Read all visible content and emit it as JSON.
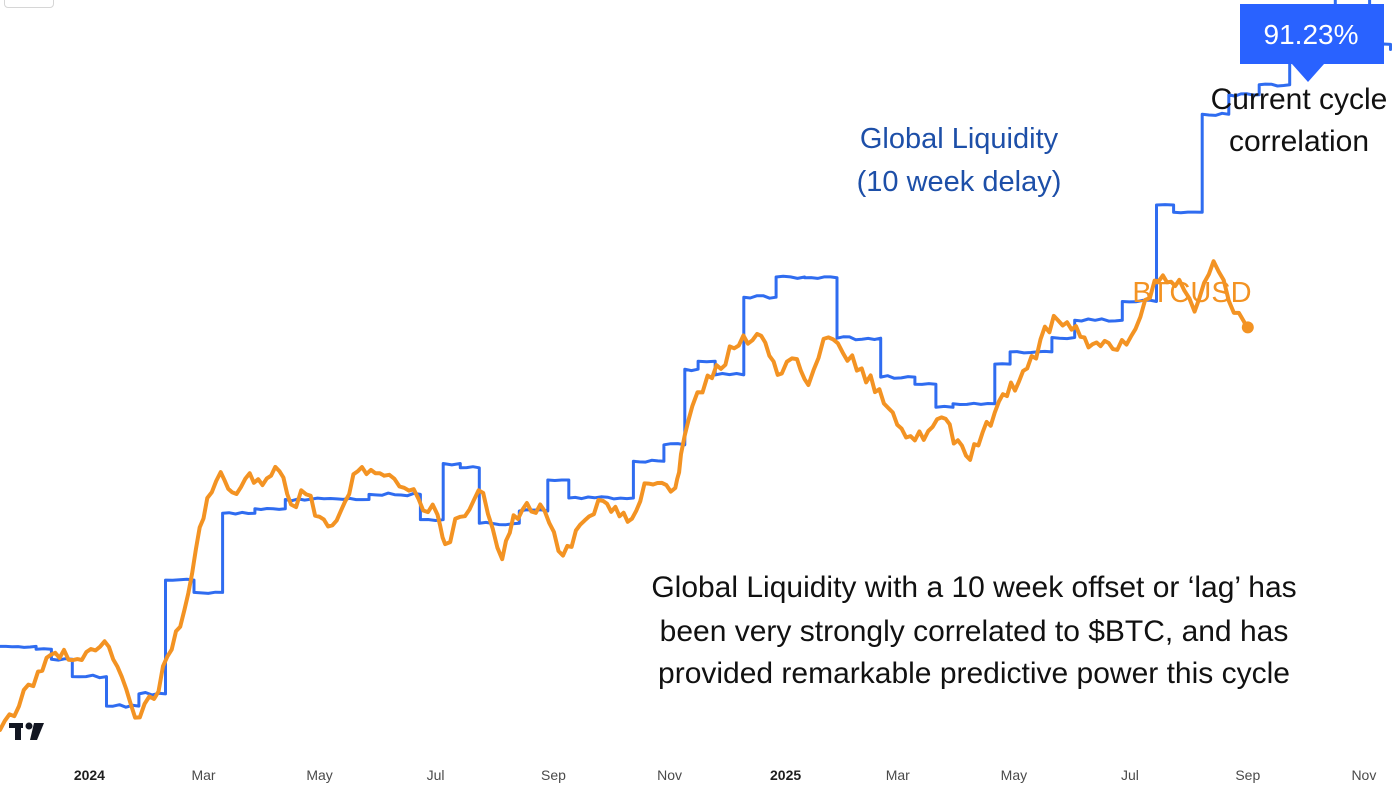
{
  "chart_data": {
    "type": "line",
    "title": "",
    "xlabel": "",
    "ylabel": "",
    "x_ticks": [
      {
        "label": "2024",
        "date": "2024-01-01",
        "bold": true
      },
      {
        "label": "Mar",
        "date": "2024-03-01"
      },
      {
        "label": "May",
        "date": "2024-05-01"
      },
      {
        "label": "Jul",
        "date": "2024-07-01"
      },
      {
        "label": "Sep",
        "date": "2024-09-01"
      },
      {
        "label": "Nov",
        "date": "2024-11-01"
      },
      {
        "label": "2025",
        "date": "2025-01-01",
        "bold": true
      },
      {
        "label": "Mar",
        "date": "2025-03-01"
      },
      {
        "label": "May",
        "date": "2025-05-01"
      },
      {
        "label": "Jul",
        "date": "2025-07-01"
      },
      {
        "label": "Sep",
        "date": "2025-09-01"
      },
      {
        "label": "Nov",
        "date": "2025-11-01"
      }
    ],
    "xlim": [
      "2023-11-15",
      "2025-11-20"
    ],
    "ylim": [
      0,
      100
    ],
    "y_axis_visible": false,
    "grid": false,
    "series": [
      {
        "name": "Global Liquidity (10 week delay)",
        "color": "#2f6cf0",
        "style": "step",
        "points": [
          [
            "2023-11-15",
            13.7
          ],
          [
            "2023-12-04",
            13.3
          ],
          [
            "2023-12-12",
            11.9
          ],
          [
            "2023-12-23",
            9.5
          ],
          [
            "2024-01-10",
            5.4
          ],
          [
            "2024-01-27",
            7.1
          ],
          [
            "2024-02-10",
            22.9
          ],
          [
            "2024-02-25",
            21.2
          ],
          [
            "2024-03-11",
            32.2
          ],
          [
            "2024-03-28",
            32.8
          ],
          [
            "2024-04-13",
            34.1
          ],
          [
            "2024-05-27",
            34.8
          ],
          [
            "2024-06-23",
            31.3
          ],
          [
            "2024-07-05",
            39.1
          ],
          [
            "2024-07-14",
            38.5
          ],
          [
            "2024-07-24",
            30.8
          ],
          [
            "2024-08-14",
            32.5
          ],
          [
            "2024-08-29",
            36.8
          ],
          [
            "2024-09-09",
            34.3
          ],
          [
            "2024-10-13",
            39.4
          ],
          [
            "2024-10-29",
            41.7
          ],
          [
            "2024-11-09",
            52.2
          ],
          [
            "2024-11-16",
            53.3
          ],
          [
            "2024-11-25",
            51.4
          ],
          [
            "2024-12-10",
            62.2
          ],
          [
            "2024-12-27",
            65.0
          ],
          [
            "2025-01-11",
            64.9
          ],
          [
            "2025-01-28",
            56.5
          ],
          [
            "2025-02-20",
            51.1
          ],
          [
            "2025-03-10",
            50.1
          ],
          [
            "2025-03-21",
            46.9
          ],
          [
            "2025-03-30",
            47.4
          ],
          [
            "2025-04-21",
            52.9
          ],
          [
            "2025-04-29",
            54.6
          ],
          [
            "2025-05-21",
            56.6
          ],
          [
            "2025-06-02",
            59.0
          ],
          [
            "2025-06-27",
            61.6
          ],
          [
            "2025-07-15",
            75.0
          ],
          [
            "2025-07-24",
            74.0
          ],
          [
            "2025-08-08",
            87.6
          ],
          [
            "2025-08-22",
            90.3
          ],
          [
            "2025-09-07",
            91.7
          ],
          [
            "2025-09-23",
            101.1
          ],
          [
            "2025-10-17",
            105.0
          ],
          [
            "2025-11-04",
            97.3
          ],
          [
            "2025-11-15",
            96.6
          ]
        ]
      },
      {
        "name": "BTCUSD",
        "color": "#f39323",
        "style": "line",
        "points": [
          [
            "2023-11-15",
            2.1
          ],
          [
            "2023-11-25",
            5.4
          ],
          [
            "2023-12-05",
            10.2
          ],
          [
            "2023-12-14",
            12.8
          ],
          [
            "2023-12-28",
            11.8
          ],
          [
            "2024-01-09",
            14.4
          ],
          [
            "2024-01-18",
            9.5
          ],
          [
            "2024-01-25",
            3.8
          ],
          [
            "2024-02-04",
            6.4
          ],
          [
            "2024-02-11",
            12.3
          ],
          [
            "2024-02-20",
            18.8
          ],
          [
            "2024-02-26",
            27.2
          ],
          [
            "2024-03-03",
            34.3
          ],
          [
            "2024-03-10",
            37.9
          ],
          [
            "2024-03-16",
            35.1
          ],
          [
            "2024-03-23",
            37.0
          ],
          [
            "2024-04-01",
            36.1
          ],
          [
            "2024-04-10",
            38.0
          ],
          [
            "2024-04-16",
            33.4
          ],
          [
            "2024-04-24",
            34.8
          ],
          [
            "2024-05-01",
            31.7
          ],
          [
            "2024-05-10",
            31.2
          ],
          [
            "2024-05-21",
            38.0
          ],
          [
            "2024-06-04",
            37.4
          ],
          [
            "2024-06-12",
            35.9
          ],
          [
            "2024-06-22",
            34.2
          ],
          [
            "2024-07-02",
            32.0
          ],
          [
            "2024-07-06",
            27.9
          ],
          [
            "2024-07-14",
            31.7
          ],
          [
            "2024-07-26",
            35.0
          ],
          [
            "2024-08-05",
            25.8
          ],
          [
            "2024-08-11",
            31.9
          ],
          [
            "2024-08-25",
            33.4
          ],
          [
            "2024-09-06",
            26.3
          ],
          [
            "2024-09-15",
            30.6
          ],
          [
            "2024-09-27",
            33.9
          ],
          [
            "2024-10-10",
            31.0
          ],
          [
            "2024-10-21",
            36.3
          ],
          [
            "2024-11-04",
            35.7
          ],
          [
            "2024-11-07",
            40.4
          ],
          [
            "2024-11-13",
            47.1
          ],
          [
            "2024-11-21",
            51.3
          ],
          [
            "2024-12-05",
            55.1
          ],
          [
            "2024-12-17",
            57.1
          ],
          [
            "2024-12-30",
            51.6
          ],
          [
            "2025-01-07",
            53.6
          ],
          [
            "2025-01-13",
            50.0
          ],
          [
            "2025-01-21",
            56.4
          ],
          [
            "2025-01-31",
            54.5
          ],
          [
            "2025-02-10",
            52.3
          ],
          [
            "2025-02-24",
            46.8
          ],
          [
            "2025-03-10",
            42.3
          ],
          [
            "2025-03-24",
            45.5
          ],
          [
            "2025-04-08",
            39.6
          ],
          [
            "2025-04-21",
            46.2
          ],
          [
            "2025-05-08",
            52.3
          ],
          [
            "2025-05-22",
            59.6
          ],
          [
            "2025-06-05",
            56.7
          ],
          [
            "2025-06-22",
            55.0
          ],
          [
            "2025-07-04",
            57.8
          ],
          [
            "2025-07-14",
            64.5
          ],
          [
            "2025-07-27",
            64.6
          ],
          [
            "2025-08-04",
            60.2
          ],
          [
            "2025-08-14",
            67.2
          ],
          [
            "2025-08-22",
            61.7
          ],
          [
            "2025-08-30",
            58.8
          ],
          [
            "2025-09-01",
            58.0
          ]
        ],
        "end_point": [
          "2025-09-01",
          58.0
        ]
      }
    ],
    "annotations": {
      "correlation_badge": "91.23%",
      "correlation_caption": [
        "Current cycle",
        "correlation"
      ],
      "liquidity_label": [
        "Global Liquidity",
        "(10 week delay)"
      ],
      "btc_label": "BTCUSD",
      "description": [
        "Global Liquidity with a 10 week offset or ‘lag’ has",
        "been very strongly correlated to $BTC, and has",
        "provided remarkable predictive power this cycle"
      ]
    },
    "badge_color": "#2962ff"
  },
  "branding": {
    "logo_text": "TV"
  }
}
